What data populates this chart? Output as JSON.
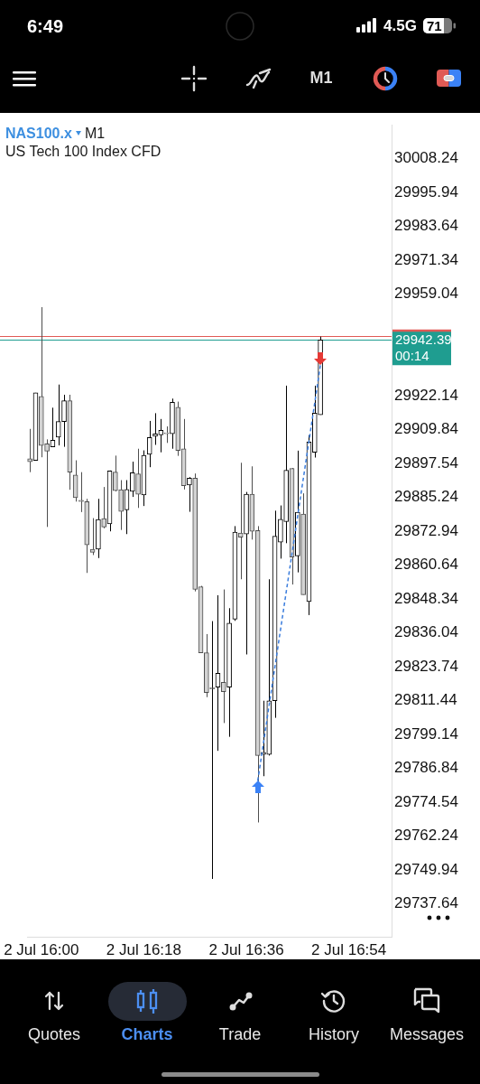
{
  "chart_data": {
    "type": "candlestick",
    "title": "NAS100.x",
    "subtitle": "US Tech 100 Index CFD",
    "categories": [
      null,
      null,
      "2 Jul 16:00",
      null,
      null,
      null,
      null,
      null,
      null,
      null,
      null,
      null,
      null,
      null,
      null,
      null,
      null,
      null,
      null,
      null,
      "2 Jul 16:18",
      null,
      null,
      null,
      null,
      null,
      null,
      null,
      null,
      null,
      null,
      null,
      null,
      null,
      null,
      null,
      null,
      null,
      "2 Jul 16:36",
      null,
      null,
      null,
      null,
      null,
      null,
      null,
      null,
      null,
      null,
      null,
      null,
      null,
      null,
      null,
      null,
      null,
      "2 Jul 16:54",
      null,
      null,
      null,
      null,
      null,
      null,
      null
    ],
    "ylim": [
      29725.7,
      30020.5
    ],
    "yticks": [
      30008.24,
      29995.94,
      29983.64,
      29971.34,
      29959.04,
      29922.14,
      29909.84,
      29897.54,
      29885.24,
      29872.94,
      29860.64,
      29848.34,
      29836.04,
      29823.74,
      29811.44,
      29799.14,
      29786.84,
      29774.54,
      29762.24,
      29749.94,
      29737.64
    ],
    "series": [
      {
        "colors": [
          "#4d4d4d",
          "#000000",
          "#4d4d4d",
          "#4d4d4d",
          "#000000",
          "#000000",
          "#000000",
          "#4d4d4d",
          "#4d4d4d",
          "#4d4d4d",
          "#4d4d4d",
          "#4d4d4d",
          "#000000",
          "#4d4d4d",
          "#000000",
          "#4d4d4d",
          "#4d4d4d",
          "#000000",
          "#000000",
          "#4d4d4d",
          "#000000",
          "#000000",
          "#000000",
          "#000000",
          "#4d4d4d",
          "#000000",
          "#4d4d4d",
          "#4d4d4d",
          "#000000",
          "#4d4d4d",
          "#4d4d4d",
          "#4d4d4d",
          "#000000",
          "#000000",
          "#4d4d4d",
          "#000000",
          "#000000",
          "#4d4d4d",
          "#000000",
          "#4d4d4d",
          "#4d4d4d",
          "#000000",
          "#000000",
          "#000000",
          "#000000",
          "#000000",
          "#4d4d4d",
          "#000000",
          "#4d4d4d",
          "#000000",
          "#000000",
          "#000000",
          null,
          null,
          null,
          null,
          null,
          null,
          null,
          null,
          null,
          null,
          null,
          null
        ],
        "ohlc": [
          [
            29899.3,
            29910.1,
            29894.4,
            29898.2
          ],
          [
            29898.7,
            29923.2,
            29898.7,
            29923.2
          ],
          [
            29921.9,
            29954.3,
            29899.8,
            29904.1
          ],
          [
            29904.7,
            29906.3,
            29874.5,
            29902.0
          ],
          [
            29903.6,
            29917.8,
            29903.6,
            29906.0
          ],
          [
            29907.1,
            29926.2,
            29904.1,
            29912.8
          ],
          [
            29912.8,
            29922.5,
            29903.6,
            29920.3
          ],
          [
            29920.3,
            29922.5,
            29888.0,
            29894.4
          ],
          [
            29893.4,
            29898.7,
            29883.7,
            29885.1
          ],
          [
            29884.2,
            29894.4,
            29879.9,
            29883.7
          ],
          [
            29883.7,
            29884.7,
            29857.8,
            29868.0
          ],
          [
            29866.4,
            29877.7,
            29864.3,
            29865.3
          ],
          [
            29866.4,
            29884.7,
            29863.2,
            29877.2
          ],
          [
            29877.5,
            29889.0,
            29874.0,
            29874.5
          ],
          [
            29875.6,
            29895.0,
            29872.9,
            29894.8
          ],
          [
            29894.4,
            29900.4,
            29887.4,
            29887.7
          ],
          [
            29888.0,
            29891.5,
            29873.4,
            29880.1
          ],
          [
            29880.7,
            29891.5,
            29871.9,
            29888.1
          ],
          [
            29887.4,
            29898.2,
            29885.4,
            29894.2
          ],
          [
            29893.8,
            29902.9,
            29881.4,
            29886.4
          ],
          [
            29886.1,
            29902.3,
            29882.1,
            29900.5
          ],
          [
            29900.9,
            29913.0,
            29896.2,
            29907.0
          ],
          [
            29907.4,
            29915.8,
            29904.3,
            29908.3
          ],
          [
            29907.9,
            29913.7,
            29901.6,
            29909.6
          ],
          [
            29908.7,
            29911.0,
            29905.0,
            29908.3
          ],
          [
            29908.3,
            29921.1,
            29902.9,
            29919.8
          ],
          [
            29918.0,
            29920.0,
            29900.3,
            29902.3
          ],
          [
            29902.9,
            29913.7,
            29888.1,
            29889.5
          ],
          [
            29889.7,
            29892.6,
            29880.0,
            29892.2
          ],
          [
            29892.2,
            29893.9,
            29851.1,
            29851.8
          ],
          [
            29852.8,
            29853.1,
            29828.8,
            29828.8
          ],
          [
            29828.8,
            29835.6,
            29812.7,
            29814.4
          ],
          [
            29815.8,
            29840.3,
            29746.7,
            29816.0
          ],
          [
            29816.3,
            29849.7,
            29793.2,
            29821.4
          ],
          [
            29818.1,
            29851.8,
            29803.3,
            29814.7
          ],
          [
            29816.3,
            29845.0,
            29798.3,
            29839.6
          ],
          [
            29841.0,
            29874.8,
            29840.4,
            29872.6
          ],
          [
            29872.3,
            29897.8,
            29855.5,
            29870.8
          ],
          [
            29871.9,
            29887.2,
            29828.2,
            29886.4
          ],
          [
            29886.4,
            29896.5,
            29869.9,
            29872.9
          ],
          [
            29873.2,
            29874.8,
            29767.2,
            29791.5
          ],
          [
            29791.9,
            29811.4,
            29784.0,
            29792.7
          ],
          [
            29791.9,
            29855.5,
            29791.5,
            29811.4
          ],
          [
            29811.4,
            29880.4,
            29805.2,
            29871.1
          ],
          [
            29869.0,
            29882.3,
            29863.0,
            29877.3
          ],
          [
            29876.4,
            29925.8,
            29868.6,
            29895.1
          ],
          [
            29895.7,
            29895.9,
            29853.6,
            29863.6
          ],
          [
            29864.0,
            29902.2,
            29858.0,
            29879.8
          ],
          [
            29879.2,
            29886.7,
            29849.9,
            29849.9
          ],
          [
            29847.4,
            29907.8,
            29842.5,
            29905.3
          ],
          [
            29901.6,
            29925.8,
            29899.7,
            29915.8
          ],
          [
            29915.2,
            29943.6,
            29915.2,
            29942.39
          ],
          null,
          null,
          null,
          null,
          null,
          null,
          null,
          null,
          null,
          null,
          null,
          null
        ]
      },
      {
        "type": "line",
        "color": "#3b7ddd",
        "line_style": "dashed",
        "values": [
          null,
          null,
          null,
          null,
          null,
          null,
          null,
          null,
          null,
          null,
          null,
          null,
          null,
          null,
          null,
          null,
          null,
          null,
          null,
          null,
          null,
          null,
          null,
          null,
          null,
          null,
          null,
          null,
          null,
          null,
          null,
          null,
          null,
          null,
          null,
          null,
          null,
          null,
          null,
          null,
          29782.3,
          null,
          null,
          null,
          null,
          null,
          null,
          null,
          null,
          null,
          null,
          29933.2,
          null,
          null,
          null,
          null,
          null,
          null,
          null,
          null,
          null,
          null,
          null,
          null
        ]
      }
    ],
    "ref_lines": [
      {
        "axis": "y",
        "value": 29943.9,
        "color": "#e05a55"
      },
      {
        "axis": "y",
        "value": 29942.39,
        "label": "29942.39",
        "color": "#1f9d90"
      }
    ],
    "annotations": [
      "M1",
      "00:14",
      "6:49",
      "4.5G",
      "71",
      "M1",
      "Quotes",
      "Charts",
      "Trade",
      "History",
      "Messages"
    ]
  }
}
